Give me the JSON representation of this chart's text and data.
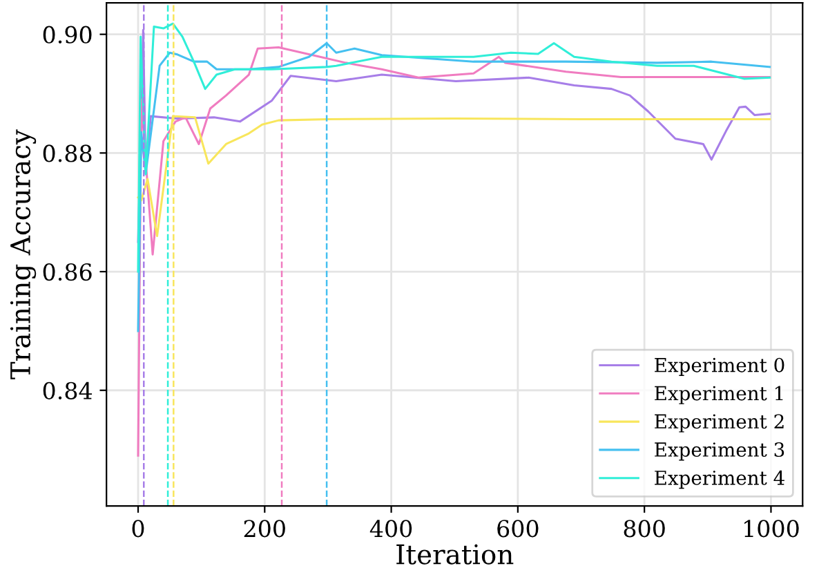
{
  "chart_data": {
    "type": "line",
    "xlabel": "Iteration",
    "ylabel": "Training Accuracy",
    "xlim": [
      -50,
      1050
    ],
    "xticks": [
      0,
      200,
      400,
      600,
      800,
      1000
    ],
    "ylim": [
      0.8205,
      0.9053
    ],
    "yticks": [
      {
        "value": 0.84,
        "label": "0.84"
      },
      {
        "value": 0.86,
        "label": "0.86"
      },
      {
        "value": 0.88,
        "label": "0.88"
      },
      {
        "value": 0.9,
        "label": "0.90"
      }
    ],
    "grid": true,
    "legend": "bottom right",
    "line_style": "solid",
    "marker": "none",
    "series": [
      {
        "name": "Experiment 0",
        "color": "#a77ee8",
        "x": [
          0,
          5,
          8,
          12,
          20,
          60,
          120,
          161,
          211,
          241,
          313,
          385,
          502,
          617,
          689,
          748,
          777,
          806,
          849,
          893,
          906,
          929,
          950,
          960,
          974,
          998
        ],
        "values": [
          0.865,
          0.885,
          0.9007,
          0.877,
          0.8862,
          0.8858,
          0.886,
          0.8853,
          0.8888,
          0.893,
          0.8921,
          0.8932,
          0.8921,
          0.8927,
          0.8914,
          0.8908,
          0.8897,
          0.887,
          0.8824,
          0.8815,
          0.8789,
          0.8837,
          0.8877,
          0.8878,
          0.8864,
          0.8866
        ]
      },
      {
        "name": "Experiment 1",
        "color": "#f07cc0",
        "x": [
          0,
          5,
          23,
          40,
          59,
          75,
          96,
          114,
          139,
          175,
          189,
          222,
          284,
          328,
          385,
          443,
          530,
          570,
          580,
          676,
          763,
          998
        ],
        "values": [
          0.829,
          0.889,
          0.8629,
          0.882,
          0.8853,
          0.886,
          0.8815,
          0.8875,
          0.8897,
          0.8932,
          0.8976,
          0.8978,
          0.8963,
          0.8952,
          0.8941,
          0.8927,
          0.8934,
          0.8962,
          0.8952,
          0.8937,
          0.8928,
          0.8928
        ]
      },
      {
        "name": "Experiment 2",
        "color": "#f8e65c",
        "x": [
          0,
          5,
          15,
          30,
          55,
          90,
          111,
          139,
          175,
          196,
          222,
          300,
          500,
          700,
          998
        ],
        "values": [
          0.8725,
          0.872,
          0.8756,
          0.866,
          0.8862,
          0.886,
          0.8782,
          0.8815,
          0.8833,
          0.8848,
          0.8855,
          0.8857,
          0.8858,
          0.8857,
          0.8857
        ]
      },
      {
        "name": "Experiment 3",
        "color": "#45c0f0",
        "x": [
          0,
          5,
          12,
          34,
          50,
          62,
          88,
          109,
          124,
          175,
          222,
          270,
          298,
          313,
          342,
          385,
          530,
          676,
          820,
          906,
          998
        ],
        "values": [
          0.85,
          0.8835,
          0.8765,
          0.8947,
          0.8969,
          0.8966,
          0.8954,
          0.8954,
          0.8941,
          0.8941,
          0.8945,
          0.8962,
          0.8985,
          0.8969,
          0.8976,
          0.8965,
          0.8954,
          0.8954,
          0.8952,
          0.8954,
          0.8945
        ]
      },
      {
        "name": "Experiment 4",
        "color": "#30eed8",
        "x": [
          0,
          4,
          12,
          25,
          40,
          55,
          70,
          88,
          106,
          124,
          153,
          211,
          298,
          313,
          385,
          530,
          589,
          632,
          657,
          689,
          748,
          820,
          878,
          958,
          998
        ],
        "values": [
          0.86,
          0.8996,
          0.8764,
          0.9013,
          0.901,
          0.9018,
          0.8996,
          0.8954,
          0.8908,
          0.8932,
          0.8941,
          0.8941,
          0.8945,
          0.8947,
          0.8962,
          0.8962,
          0.8969,
          0.8967,
          0.8985,
          0.8962,
          0.8954,
          0.8947,
          0.8947,
          0.8925,
          0.8927
        ]
      }
    ],
    "ref_lines": [
      {
        "axis": "x",
        "value": 9,
        "color": "#a77ee8",
        "line_style": "dashed"
      },
      {
        "axis": "x",
        "value": 47,
        "color": "#30eed8",
        "line_style": "dashed"
      },
      {
        "axis": "x",
        "value": 56,
        "color": "#f8e65c",
        "line_style": "dashed"
      },
      {
        "axis": "x",
        "value": 227,
        "color": "#f07cc0",
        "line_style": "dashed"
      },
      {
        "axis": "x",
        "value": 298,
        "color": "#45c0f0",
        "line_style": "dashed"
      }
    ]
  }
}
